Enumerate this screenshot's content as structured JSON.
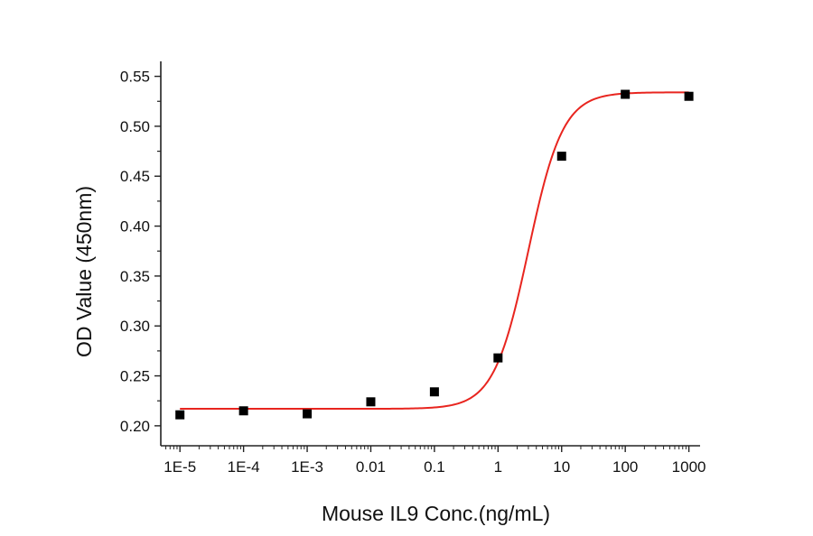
{
  "chart_data": {
    "type": "scatter",
    "title": "",
    "xlabel": "Mouse IL9 Conc.(ng/mL)",
    "ylabel": "OD Value (450nm)",
    "x_scale": "log",
    "xlim": [
      5e-06,
      1500
    ],
    "ylim": [
      0.18,
      0.565
    ],
    "x_ticks": [
      {
        "value": 1e-05,
        "label": "1E-5"
      },
      {
        "value": 0.0001,
        "label": "1E-4"
      },
      {
        "value": 0.001,
        "label": "1E-3"
      },
      {
        "value": 0.01,
        "label": "0.01"
      },
      {
        "value": 0.1,
        "label": "0.1"
      },
      {
        "value": 1,
        "label": "1"
      },
      {
        "value": 10,
        "label": "10"
      },
      {
        "value": 100,
        "label": "100"
      },
      {
        "value": 1000,
        "label": "1000"
      }
    ],
    "y_ticks": [
      {
        "value": 0.2,
        "label": "0.20"
      },
      {
        "value": 0.25,
        "label": "0.25"
      },
      {
        "value": 0.3,
        "label": "0.30"
      },
      {
        "value": 0.35,
        "label": "0.35"
      },
      {
        "value": 0.4,
        "label": "0.40"
      },
      {
        "value": 0.45,
        "label": "0.45"
      },
      {
        "value": 0.5,
        "label": "0.50"
      },
      {
        "value": 0.55,
        "label": "0.55"
      }
    ],
    "points": [
      {
        "x": 1e-05,
        "y": 0.211
      },
      {
        "x": 0.0001,
        "y": 0.215
      },
      {
        "x": 0.001,
        "y": 0.212
      },
      {
        "x": 0.01,
        "y": 0.224
      },
      {
        "x": 0.1,
        "y": 0.234
      },
      {
        "x": 1,
        "y": 0.268
      },
      {
        "x": 10,
        "y": 0.47
      },
      {
        "x": 100,
        "y": 0.532
      },
      {
        "x": 1000,
        "y": 0.53
      }
    ],
    "fit": {
      "model": "4PL",
      "bottom": 0.217,
      "top": 0.534,
      "ec50": 3.0,
      "hill": 1.6,
      "color": "#e8251f"
    },
    "marker_color": "#000000",
    "grid": false,
    "legend": "none"
  }
}
